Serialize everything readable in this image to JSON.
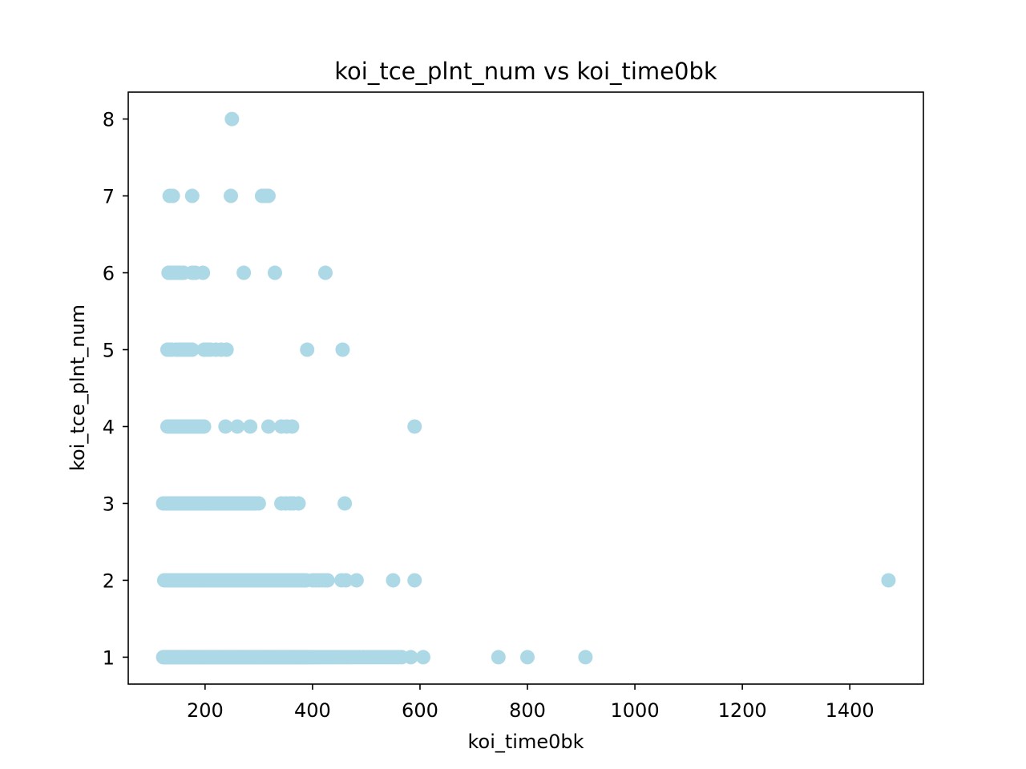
{
  "chart_data": {
    "type": "scatter",
    "title": "koi_tce_plnt_num vs koi_time0bk",
    "xlabel": "koi_time0bk",
    "ylabel": "koi_tce_plnt_num",
    "xlim": [
      57,
      1537
    ],
    "ylim": [
      0.65,
      8.35
    ],
    "xticks": [
      200,
      400,
      600,
      800,
      1000,
      1200,
      1400
    ],
    "yticks": [
      1,
      2,
      3,
      4,
      5,
      6,
      7,
      8
    ],
    "xtick_labels": [
      "200",
      "400",
      "600",
      "800",
      "1000",
      "1200",
      "1400"
    ],
    "ytick_labels": [
      "1",
      "2",
      "3",
      "4",
      "5",
      "6",
      "7",
      "8"
    ],
    "grid": false,
    "point_color": "#add8e6",
    "series": [
      {
        "x": [
          122,
          124,
          126,
          128,
          130,
          132,
          134,
          136,
          138,
          140,
          142,
          144,
          146,
          148,
          150,
          152,
          154,
          156,
          158,
          160,
          162,
          164,
          166,
          168,
          170,
          172,
          174,
          176,
          178,
          180,
          182,
          184,
          186,
          188,
          190,
          192,
          194,
          196,
          198,
          200,
          202,
          204,
          206,
          208,
          210,
          212,
          214,
          216,
          218,
          220,
          222,
          224,
          226,
          228,
          230,
          232,
          234,
          236,
          238,
          240,
          242,
          244,
          246,
          248,
          250,
          252,
          254,
          256,
          258,
          260,
          262,
          264,
          266,
          268,
          270,
          272,
          274,
          276,
          278,
          280,
          282,
          284,
          286,
          288,
          290,
          292,
          294,
          296,
          298,
          300,
          302,
          304,
          306,
          308,
          310,
          312,
          314,
          316,
          318,
          320,
          322,
          324,
          326,
          328,
          330,
          332,
          334,
          336,
          338,
          340,
          342,
          344,
          346,
          348,
          350,
          352,
          354,
          356,
          358,
          360,
          362,
          364,
          366,
          368,
          370,
          372,
          374,
          376,
          378,
          380,
          382,
          384,
          386,
          388,
          390,
          393,
          396,
          399,
          402,
          405,
          408,
          412,
          416,
          420,
          424,
          428,
          432,
          436,
          440,
          445,
          450,
          455,
          460,
          465,
          470,
          476,
          482,
          488,
          494,
          500,
          506,
          512,
          518,
          524,
          530,
          536,
          542,
          548,
          554,
          560,
          566,
          583,
          606,
          746,
          800,
          908,
          124,
          128,
          132,
          136,
          140,
          144,
          148,
          152,
          156,
          160,
          164,
          168,
          172,
          176,
          180,
          184,
          188,
          192,
          196,
          200,
          204,
          208,
          212,
          216,
          220,
          224,
          228,
          232,
          236,
          240,
          244,
          248,
          252,
          256,
          260,
          264,
          268,
          272,
          276,
          280,
          284,
          288,
          292,
          296,
          300,
          304,
          308,
          312,
          316,
          320,
          324,
          328,
          332,
          336,
          340,
          344,
          348,
          352,
          356,
          360,
          364,
          368,
          372,
          376,
          380,
          384,
          388,
          400,
          406,
          412,
          418,
          424,
          428,
          454,
          462,
          482,
          550,
          590,
          1472,
          122,
          126,
          130,
          134,
          138,
          142,
          146,
          150,
          154,
          158,
          162,
          166,
          170,
          174,
          178,
          182,
          186,
          190,
          194,
          198,
          202,
          206,
          210,
          214,
          218,
          222,
          226,
          230,
          234,
          238,
          242,
          246,
          250,
          254,
          258,
          262,
          266,
          270,
          274,
          278,
          282,
          286,
          290,
          294,
          300,
          342,
          350,
          358,
          364,
          374,
          460,
          130,
          134,
          138,
          142,
          146,
          150,
          154,
          158,
          162,
          166,
          170,
          174,
          178,
          182,
          186,
          190,
          194,
          198,
          238,
          260,
          284,
          318,
          342,
          352,
          362,
          590,
          130,
          134,
          138,
          146,
          152,
          158,
          164,
          170,
          176,
          198,
          204,
          210,
          220,
          230,
          240,
          390,
          456,
          132,
          136,
          140,
          144,
          150,
          156,
          160,
          176,
          182,
          196,
          272,
          330,
          424,
          134,
          140,
          176,
          248,
          306,
          312,
          318,
          250
        ],
        "y": [
          1,
          1,
          1,
          1,
          1,
          1,
          1,
          1,
          1,
          1,
          1,
          1,
          1,
          1,
          1,
          1,
          1,
          1,
          1,
          1,
          1,
          1,
          1,
          1,
          1,
          1,
          1,
          1,
          1,
          1,
          1,
          1,
          1,
          1,
          1,
          1,
          1,
          1,
          1,
          1,
          1,
          1,
          1,
          1,
          1,
          1,
          1,
          1,
          1,
          1,
          1,
          1,
          1,
          1,
          1,
          1,
          1,
          1,
          1,
          1,
          1,
          1,
          1,
          1,
          1,
          1,
          1,
          1,
          1,
          1,
          1,
          1,
          1,
          1,
          1,
          1,
          1,
          1,
          1,
          1,
          1,
          1,
          1,
          1,
          1,
          1,
          1,
          1,
          1,
          1,
          1,
          1,
          1,
          1,
          1,
          1,
          1,
          1,
          1,
          1,
          1,
          1,
          1,
          1,
          1,
          1,
          1,
          1,
          1,
          1,
          1,
          1,
          1,
          1,
          1,
          1,
          1,
          1,
          1,
          1,
          1,
          1,
          1,
          1,
          1,
          1,
          1,
          1,
          1,
          1,
          1,
          1,
          1,
          1,
          1,
          1,
          1,
          1,
          1,
          1,
          1,
          1,
          1,
          1,
          1,
          1,
          1,
          1,
          1,
          1,
          1,
          1,
          1,
          1,
          1,
          1,
          1,
          1,
          1,
          1,
          1,
          1,
          1,
          1,
          1,
          1,
          1,
          1,
          1,
          1,
          1,
          1,
          1,
          1,
          1,
          1,
          2,
          2,
          2,
          2,
          2,
          2,
          2,
          2,
          2,
          2,
          2,
          2,
          2,
          2,
          2,
          2,
          2,
          2,
          2,
          2,
          2,
          2,
          2,
          2,
          2,
          2,
          2,
          2,
          2,
          2,
          2,
          2,
          2,
          2,
          2,
          2,
          2,
          2,
          2,
          2,
          2,
          2,
          2,
          2,
          2,
          2,
          2,
          2,
          2,
          2,
          2,
          2,
          2,
          2,
          2,
          2,
          2,
          2,
          2,
          2,
          2,
          2,
          2,
          2,
          2,
          2,
          2,
          2,
          2,
          2,
          2,
          2,
          2,
          2,
          2,
          2,
          2,
          2,
          2,
          3,
          3,
          3,
          3,
          3,
          3,
          3,
          3,
          3,
          3,
          3,
          3,
          3,
          3,
          3,
          3,
          3,
          3,
          3,
          3,
          3,
          3,
          3,
          3,
          3,
          3,
          3,
          3,
          3,
          3,
          3,
          3,
          3,
          3,
          3,
          3,
          3,
          3,
          3,
          3,
          3,
          3,
          3,
          3,
          3,
          3,
          3,
          3,
          3,
          3,
          3,
          4,
          4,
          4,
          4,
          4,
          4,
          4,
          4,
          4,
          4,
          4,
          4,
          4,
          4,
          4,
          4,
          4,
          4,
          4,
          4,
          4,
          4,
          4,
          4,
          4,
          4,
          5,
          5,
          5,
          5,
          5,
          5,
          5,
          5,
          5,
          5,
          5,
          5,
          5,
          5,
          5,
          5,
          5,
          6,
          6,
          6,
          6,
          6,
          6,
          6,
          6,
          6,
          6,
          6,
          6,
          6,
          7,
          7,
          7,
          7,
          7,
          7,
          7,
          8
        ]
      }
    ]
  }
}
